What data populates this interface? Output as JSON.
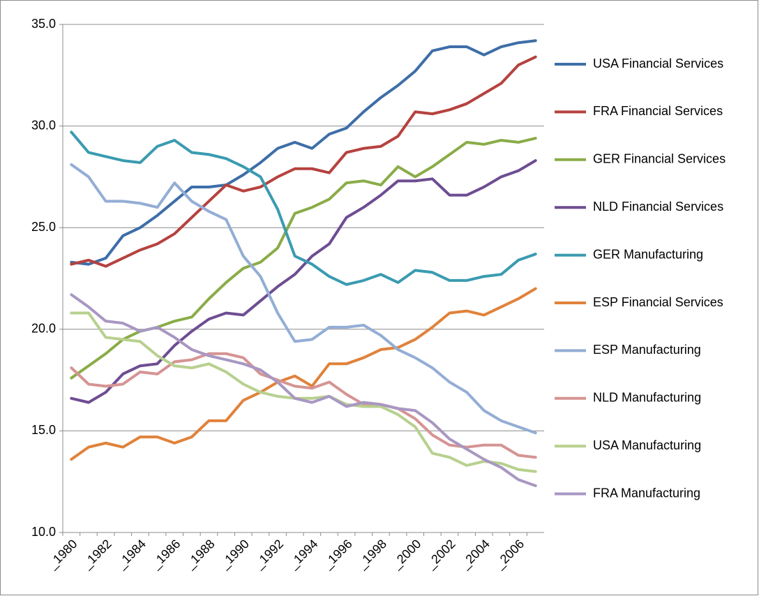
{
  "chart_data": {
    "type": "line",
    "categories": [
      "_1980",
      null,
      "_1982",
      null,
      "_1984",
      null,
      "_1986",
      null,
      "_1988",
      null,
      "_1990",
      null,
      "_1992",
      null,
      "_1994",
      null,
      "_1996",
      null,
      "_1998",
      null,
      "_2000",
      null,
      "_2002",
      null,
      "_2004",
      null,
      "_2006",
      null
    ],
    "ylim": [
      10,
      35
    ],
    "yticks": [
      {
        "value": 10,
        "label": "10.0"
      },
      {
        "value": 15,
        "label": "15.0"
      },
      {
        "value": 20,
        "label": "20.0"
      },
      {
        "value": 25,
        "label": "25.0"
      },
      {
        "value": 30,
        "label": "30.0"
      },
      {
        "value": 35,
        "label": "35.0"
      }
    ],
    "grid": true,
    "legend": "right",
    "series": [
      {
        "name": "USA Financial Services",
        "color": "#3e6ea8",
        "values": [
          23.3,
          23.2,
          23.5,
          24.6,
          25.0,
          25.6,
          26.3,
          27.0,
          27.0,
          27.1,
          27.6,
          28.2,
          28.9,
          29.2,
          28.9,
          29.6,
          29.9,
          30.7,
          31.4,
          32.0,
          32.7,
          33.7,
          33.9,
          33.9,
          33.5,
          33.9,
          34.1,
          34.2
        ]
      },
      {
        "name": "FRA Financial Services",
        "color": "#b5423f",
        "values": [
          23.2,
          23.4,
          23.1,
          23.5,
          23.9,
          24.2,
          24.7,
          25.5,
          26.3,
          27.1,
          26.8,
          27.0,
          27.5,
          27.9,
          27.9,
          27.7,
          28.7,
          28.9,
          29.0,
          29.5,
          30.7,
          30.6,
          30.8,
          31.1,
          31.6,
          32.1,
          33.0,
          33.4
        ]
      },
      {
        "name": "GER Financial Services",
        "color": "#8aac48",
        "values": [
          17.6,
          18.2,
          18.8,
          19.5,
          19.9,
          20.1,
          20.4,
          20.6,
          21.5,
          22.3,
          23.0,
          23.3,
          24.0,
          25.7,
          26.0,
          26.4,
          27.2,
          27.3,
          27.1,
          28.0,
          27.5,
          28.0,
          28.6,
          29.2,
          29.1,
          29.3,
          29.2,
          29.4
        ]
      },
      {
        "name": "NLD Financial Services",
        "color": "#6e4d92",
        "values": [
          16.6,
          16.4,
          16.9,
          17.8,
          18.2,
          18.3,
          19.2,
          19.9,
          20.5,
          20.8,
          20.7,
          21.4,
          22.1,
          22.7,
          23.6,
          24.2,
          25.5,
          26.0,
          26.6,
          27.3,
          27.3,
          27.4,
          26.6,
          26.6,
          27.0,
          27.5,
          27.8,
          28.3
        ]
      },
      {
        "name": "GER Manufacturing",
        "color": "#3a9bb0",
        "values": [
          29.7,
          28.7,
          28.5,
          28.3,
          28.2,
          29.0,
          29.3,
          28.7,
          28.6,
          28.4,
          28.0,
          27.5,
          25.9,
          23.6,
          23.2,
          22.6,
          22.2,
          22.4,
          22.7,
          22.3,
          22.9,
          22.8,
          22.4,
          22.4,
          22.6,
          22.7,
          23.4,
          23.7
        ]
      },
      {
        "name": "ESP Financial Services",
        "color": "#e0823b",
        "values": [
          13.6,
          14.2,
          14.4,
          14.2,
          14.7,
          14.7,
          14.4,
          14.7,
          15.5,
          15.5,
          16.5,
          16.9,
          17.4,
          17.7,
          17.2,
          18.3,
          18.3,
          18.6,
          19.0,
          19.1,
          19.5,
          20.1,
          20.8,
          20.9,
          20.7,
          21.1,
          21.5,
          22.0
        ]
      },
      {
        "name": "ESP Manufacturing",
        "color": "#93add5",
        "values": [
          28.1,
          27.5,
          26.3,
          26.3,
          26.2,
          26.0,
          27.2,
          26.3,
          25.8,
          25.4,
          23.6,
          22.6,
          20.8,
          19.4,
          19.5,
          20.1,
          20.1,
          20.2,
          19.7,
          19.0,
          18.6,
          18.1,
          17.4,
          16.9,
          16.0,
          15.5,
          15.2,
          14.9
        ]
      },
      {
        "name": "NLD Manufacturing",
        "color": "#d59493",
        "values": [
          18.1,
          17.3,
          17.2,
          17.3,
          17.9,
          17.8,
          18.4,
          18.5,
          18.8,
          18.8,
          18.6,
          17.8,
          17.5,
          17.2,
          17.1,
          17.4,
          16.8,
          16.3,
          16.3,
          16.1,
          15.6,
          14.8,
          14.3,
          14.2,
          14.3,
          14.3,
          13.8,
          13.7
        ]
      },
      {
        "name": "USA Manufacturing",
        "color": "#b8d08e",
        "values": [
          20.8,
          20.8,
          19.6,
          19.5,
          19.4,
          18.7,
          18.2,
          18.1,
          18.3,
          17.9,
          17.3,
          16.9,
          16.7,
          16.6,
          16.6,
          16.7,
          16.3,
          16.2,
          16.2,
          15.8,
          15.2,
          13.9,
          13.7,
          13.3,
          13.5,
          13.4,
          13.1,
          13.0
        ]
      },
      {
        "name": "FRA Manufacturing",
        "color": "#a897c2",
        "values": [
          21.7,
          21.1,
          20.4,
          20.3,
          19.9,
          20.1,
          19.6,
          19.0,
          18.7,
          18.5,
          18.3,
          18.0,
          17.4,
          16.6,
          16.4,
          16.7,
          16.2,
          16.4,
          16.3,
          16.1,
          16.0,
          15.4,
          14.6,
          14.1,
          13.6,
          13.2,
          12.6,
          12.3
        ]
      }
    ]
  }
}
